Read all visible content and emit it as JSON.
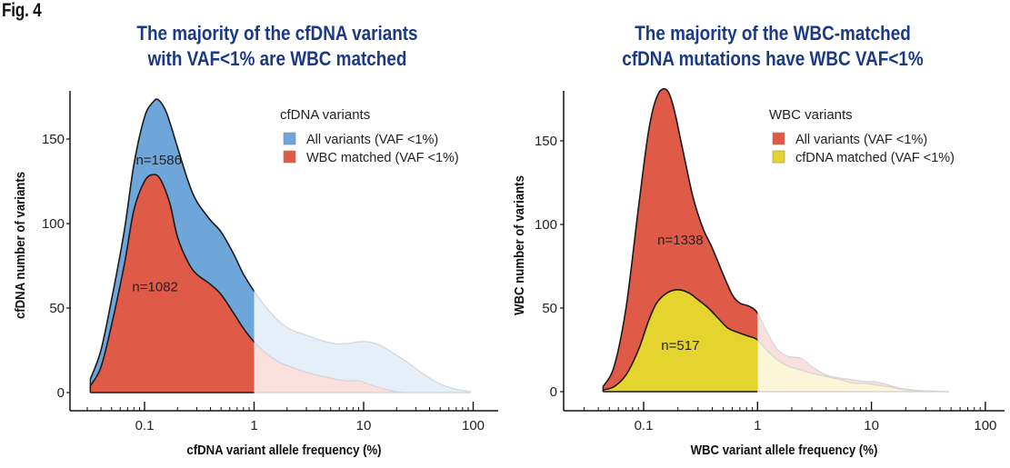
{
  "figure_label": "Fig. 4",
  "chart_data": [
    {
      "type": "area",
      "subtype": "density",
      "title": [
        "The majority of the cfDNA variants",
        "with VAF<1% are WBC matched"
      ],
      "xlabel": "cfDNA variant allele frequency (%)",
      "ylabel": "cfDNA number of variants",
      "xscale": "log",
      "xlim": [
        0.02,
        100
      ],
      "ylim": [
        0,
        185
      ],
      "xticks": [
        0.1,
        1,
        10,
        100
      ],
      "xtick_labels": [
        "0.1",
        "1",
        "10",
        "100"
      ],
      "yticks": [
        0,
        50,
        100,
        150
      ],
      "ytick_labels": [
        "0",
        "50",
        "100",
        "150"
      ],
      "highlight_threshold": 1,
      "legend": {
        "title": "cfDNA variants",
        "placement": "top-right",
        "entries": [
          {
            "label": "All variants (VAF <1%)",
            "color": "#6fa6d9"
          },
          {
            "label": "WBC matched (VAF <1%)",
            "color": "#e05a48"
          }
        ]
      },
      "series": [
        {
          "name": "All variants (VAF <1%)",
          "color": "#6fa6d9",
          "faded_color": "#e4eff9",
          "annotation": "n=1586",
          "x": [
            0.032,
            0.04,
            0.05,
            0.065,
            0.08,
            0.1,
            0.12,
            0.135,
            0.16,
            0.2,
            0.25,
            0.3,
            0.4,
            0.5,
            0.65,
            0.8,
            1,
            1.3,
            1.7,
            2.2,
            3,
            4,
            5.5,
            7,
            9,
            11,
            14,
            18,
            25,
            35,
            50,
            70,
            95
          ],
          "y": [
            8,
            25,
            55,
            95,
            135,
            163,
            172,
            173,
            165,
            145,
            125,
            113,
            102,
            95,
            82,
            70,
            60,
            50,
            42,
            37,
            34,
            31,
            29,
            29,
            30,
            30,
            28,
            24,
            18,
            11,
            5,
            2,
            0.5
          ]
        },
        {
          "name": "WBC matched (VAF <1%)",
          "color": "#e05a48",
          "faded_color": "#fbe1dd",
          "annotation": "n=1082",
          "x": [
            0.032,
            0.04,
            0.05,
            0.065,
            0.08,
            0.1,
            0.12,
            0.14,
            0.17,
            0.2,
            0.25,
            0.3,
            0.4,
            0.5,
            0.65,
            0.8,
            1,
            1.3,
            1.7,
            2.2,
            3,
            4,
            5.5,
            7,
            9,
            11,
            14,
            18,
            25
          ],
          "y": [
            4,
            15,
            40,
            75,
            108,
            125,
            129,
            126,
            112,
            92,
            77,
            70,
            64,
            58,
            47,
            38,
            30,
            23,
            18,
            15,
            12,
            10,
            8,
            7,
            7,
            5,
            3,
            1,
            0
          ]
        }
      ]
    },
    {
      "type": "area",
      "subtype": "density",
      "title": [
        "The majority of the WBC-matched",
        "cfDNA mutations have WBC VAF<1%"
      ],
      "xlabel": "WBC variant allele frequency (%)",
      "ylabel": "WBC number of variants",
      "xscale": "log",
      "xlim": [
        0.03,
        100
      ],
      "ylim": [
        0,
        188
      ],
      "xticks": [
        0.1,
        1,
        10,
        100
      ],
      "xtick_labels": [
        "0.1",
        "1",
        "10",
        "100"
      ],
      "yticks": [
        0,
        50,
        100,
        150
      ],
      "ytick_labels": [
        "0",
        "50",
        "100",
        "150"
      ],
      "highlight_threshold": 1,
      "legend": {
        "title": "WBC variants",
        "placement": "top-right",
        "entries": [
          {
            "label": "All variants (VAF <1%)",
            "color": "#e05a48"
          },
          {
            "label": "cfDNA matched (VAF <1%)",
            "color": "#e6d42e"
          }
        ]
      },
      "series": [
        {
          "name": "All variants (VAF <1%)",
          "color": "#e05a48",
          "faded_color": "#fbe1dd",
          "annotation": "n=1338",
          "x": [
            0.044,
            0.055,
            0.07,
            0.09,
            0.11,
            0.13,
            0.155,
            0.18,
            0.22,
            0.27,
            0.33,
            0.4,
            0.5,
            0.6,
            0.7,
            0.85,
            1,
            1.2,
            1.5,
            1.9,
            2.4,
            3,
            4,
            5.5,
            7,
            9,
            11,
            14,
            18,
            25,
            35,
            48
          ],
          "y": [
            3,
            15,
            50,
            110,
            155,
            176,
            181,
            172,
            145,
            117,
            98,
            86,
            70,
            58,
            53,
            51,
            47,
            36,
            25,
            21,
            20,
            15,
            10,
            8,
            7,
            6,
            6,
            4,
            2,
            0.8,
            0.3,
            0
          ]
        },
        {
          "name": "cfDNA matched (VAF <1%)",
          "color": "#e6d42e",
          "faded_color": "#fbf6d8",
          "annotation": "n=517",
          "x": [
            0.044,
            0.055,
            0.07,
            0.09,
            0.11,
            0.13,
            0.16,
            0.2,
            0.25,
            0.3,
            0.37,
            0.45,
            0.55,
            0.7,
            0.85,
            1,
            1.2,
            1.5,
            1.9,
            2.4,
            3,
            4,
            5.5,
            7,
            9,
            11,
            14,
            18,
            25,
            35,
            48
          ],
          "y": [
            1,
            3,
            10,
            25,
            42,
            53,
            59,
            61,
            59,
            55,
            50,
            44,
            38,
            35,
            33,
            31,
            25,
            19,
            15,
            13,
            11,
            9,
            7,
            5,
            5,
            4,
            3,
            1.5,
            0.6,
            0.2,
            0
          ]
        }
      ]
    }
  ]
}
